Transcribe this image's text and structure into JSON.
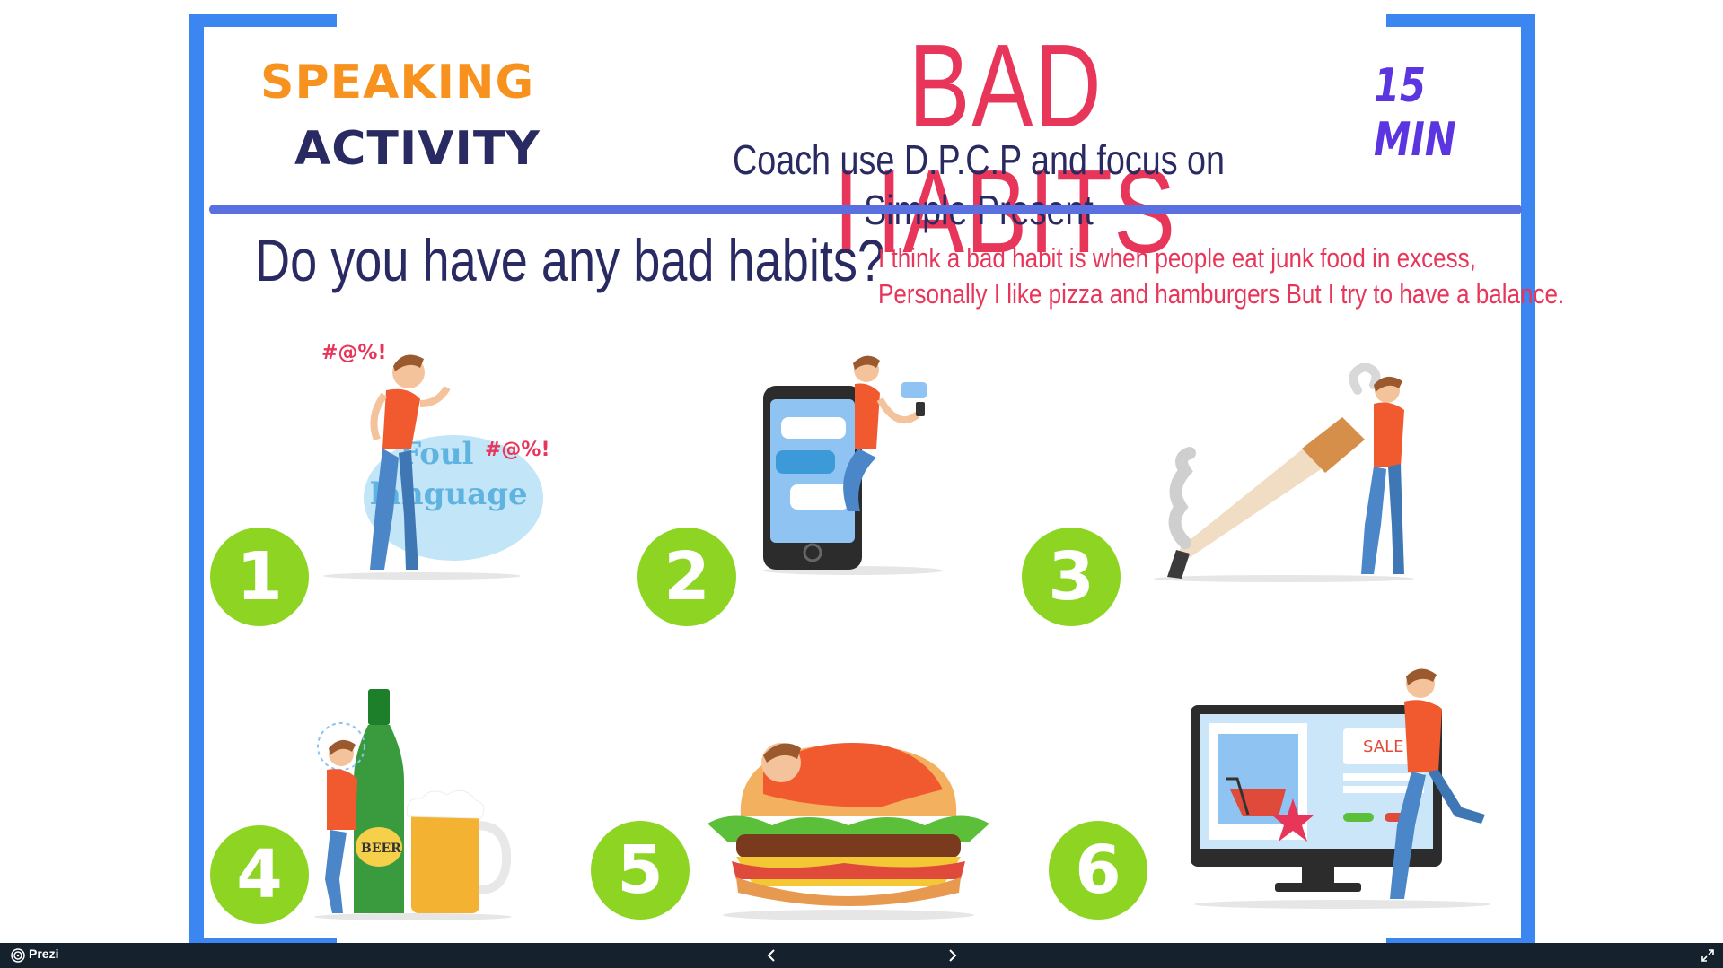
{
  "slide": {
    "speaking_label": "SPEAKING",
    "activity_label": "ACTIVITY",
    "title": "BAD HABITS",
    "subtitle": "Coach use D.P.C.P and focus on Simple Present",
    "duration": "15 MIN",
    "question": "Do you have any bad habits?",
    "answer_line1": "I think a bad habit is when people  eat junk food in excess,",
    "answer_line2": "Personally I like pizza and hamburgers But I try to have a balance.",
    "colors": {
      "frame": "#3b86f0",
      "speaking": "#f7921e",
      "navy": "#2a2a63",
      "title": "#e8365a",
      "duration": "#5b35e0",
      "badge": "#8dd423"
    },
    "habits": [
      {
        "number": "1",
        "illustration": "foul-language",
        "bubble_text_1": "Foul",
        "bubble_text_2": "language",
        "symbols": "#@%!"
      },
      {
        "number": "2",
        "illustration": "smartphone"
      },
      {
        "number": "3",
        "illustration": "smoking"
      },
      {
        "number": "4",
        "illustration": "beer",
        "bottle_label": "BEER"
      },
      {
        "number": "5",
        "illustration": "hamburger"
      },
      {
        "number": "6",
        "illustration": "online-shopping",
        "sale_text": "SALE"
      }
    ]
  },
  "toolbar": {
    "app_name": "Prezi",
    "prev_icon": "chevron-left-icon",
    "next_icon": "chevron-right-icon",
    "fullscreen_icon": "expand-icon"
  }
}
